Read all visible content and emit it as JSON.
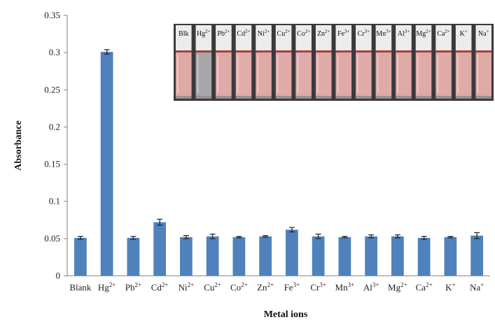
{
  "chart_data": {
    "type": "bar",
    "categories": [
      "Blank",
      "Hg",
      "Pb",
      "Cd",
      "Ni",
      "Cu",
      "Co",
      "Zn",
      "Fe",
      "Cr",
      "Mn",
      "Al",
      "Mg",
      "Ca",
      "K",
      "Na"
    ],
    "charges": [
      "",
      "2+",
      "2+",
      "2+",
      "2+",
      "2+",
      "2+",
      "2+",
      "3+",
      "3+",
      "3+",
      "3+",
      "2+",
      "2+",
      "+",
      "+"
    ],
    "values": [
      0.051,
      0.301,
      0.051,
      0.072,
      0.052,
      0.053,
      0.052,
      0.053,
      0.062,
      0.053,
      0.052,
      0.053,
      0.053,
      0.051,
      0.052,
      0.054
    ],
    "errors": [
      0.002,
      0.003,
      0.002,
      0.004,
      0.002,
      0.003,
      0.001,
      0.001,
      0.003,
      0.003,
      0.001,
      0.002,
      0.002,
      0.002,
      0.001,
      0.004
    ],
    "xlabel": "Metal ions",
    "ylabel": "Absorbance",
    "ylim": [
      0,
      0.35
    ],
    "yticks": [
      0,
      0.05,
      0.1,
      0.15,
      0.2,
      0.25,
      0.3,
      0.35
    ],
    "ytick_labels": [
      "0",
      "0.05",
      "0.1",
      "0.15",
      "0.2",
      "0.25",
      "0.3",
      "0.35"
    ],
    "bar_color": "#4f81bd",
    "grid": false,
    "legend": "none"
  },
  "inset_photo": {
    "labels": [
      {
        "el": "Blk",
        "ch": ""
      },
      {
        "el": "Hg",
        "ch": "2+"
      },
      {
        "el": "Pb",
        "ch": "2+"
      },
      {
        "el": "Cd",
        "ch": "2+"
      },
      {
        "el": "Ni",
        "ch": "2+"
      },
      {
        "el": "Cu",
        "ch": "2+"
      },
      {
        "el": "Co",
        "ch": "2+"
      },
      {
        "el": "Zn",
        "ch": "2+"
      },
      {
        "el": "Fe",
        "ch": "3+"
      },
      {
        "el": "Cr",
        "ch": "3+"
      },
      {
        "el": "Mn",
        "ch": "3+"
      },
      {
        "el": "Al",
        "ch": "3+"
      },
      {
        "el": "Mg",
        "ch": "2+"
      },
      {
        "el": "Ca",
        "ch": "2+"
      },
      {
        "el": "K",
        "ch": "+"
      },
      {
        "el": "Na",
        "ch": "+"
      }
    ],
    "solution_colors": [
      "#dfa9a6",
      "#a7a7a9",
      "#dfaaa7",
      "#e1acaa",
      "#dfa9a6",
      "#dfaaa8",
      "#e0abaa",
      "#dfaaa8",
      "#dfa9a7",
      "#e0aaa8",
      "#dfaaa8",
      "#dfa9a6",
      "#dfaaa7",
      "#e0aaa8",
      "#dfaaa7",
      "#dfa9a6"
    ]
  }
}
